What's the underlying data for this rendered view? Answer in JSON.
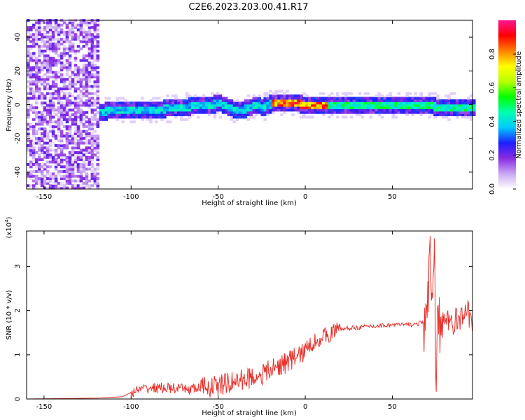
{
  "title": "C2E6.2023.203.00.41.R17",
  "chart_data": [
    {
      "type": "heatmap",
      "xlabel": "Height of straight line (km)",
      "ylabel": "Frequency (Hz)",
      "xlim": [
        -160,
        96
      ],
      "ylim": [
        -50,
        50
      ],
      "xticks": [
        -150,
        -100,
        -50,
        0,
        50
      ],
      "yticks": [
        40,
        20,
        0,
        -20,
        -40
      ],
      "colorbar": {
        "label": "Normalized spectral amplitude",
        "ticks": [
          0.0,
          0.2,
          0.4,
          0.6,
          0.8
        ],
        "colormap": [
          "#ffffff",
          "#c9a8f2",
          "#8a2be2",
          "#1e1eff",
          "#00c8ff",
          "#00ffb0",
          "#00ff00",
          "#b8ff00",
          "#ffff00",
          "#ff8000",
          "#ff0000",
          "#ff1493"
        ]
      },
      "ridge": {
        "x": [
          -135,
          -120,
          -110,
          -100,
          -90,
          -80,
          -70,
          -60,
          -50,
          -40,
          -35,
          -30,
          -25,
          -20,
          -15,
          -10,
          -5,
          0,
          10,
          20,
          30,
          40,
          50,
          60,
          70,
          75,
          80,
          90,
          96
        ],
        "frequency": [
          -5,
          -5,
          -4,
          -4,
          -4,
          -3,
          -2,
          -1,
          0,
          -4,
          -3,
          -1,
          -2,
          0,
          0,
          0,
          0,
          -1,
          -1,
          -1,
          -1,
          -1,
          -1,
          -1,
          -1,
          -2,
          -2,
          -2,
          -2
        ]
      }
    },
    {
      "type": "line",
      "xlabel": "Height of straight line (km)",
      "ylabel": "SNR (10 * v/v)",
      "exponent_label": "(x10",
      "exponent_power": "4",
      "exponent_close": ")",
      "xlim": [
        -160,
        96
      ],
      "ylim": [
        0,
        3.8
      ],
      "xticks": [
        -150,
        -100,
        -50,
        0,
        50
      ],
      "yticks": [
        0,
        1,
        2,
        3
      ],
      "series": [
        {
          "color": "#e8302a",
          "x": [
            -160,
            -140,
            -120,
            -105,
            -100,
            -95,
            -90,
            -80,
            -70,
            -60,
            -50,
            -40,
            -30,
            -25,
            -20,
            -15,
            -10,
            -5,
            0,
            5,
            10,
            15,
            20,
            30,
            40,
            50,
            60,
            65,
            68,
            70,
            72,
            73,
            74,
            75,
            76,
            78,
            80,
            85,
            90,
            92,
            96
          ],
          "y": [
            0.0,
            0.01,
            0.02,
            0.05,
            0.15,
            0.2,
            0.25,
            0.25,
            0.22,
            0.25,
            0.3,
            0.4,
            0.5,
            0.55,
            0.65,
            0.75,
            0.85,
            0.95,
            1.1,
            1.3,
            1.4,
            1.5,
            1.58,
            1.62,
            1.65,
            1.68,
            1.68,
            1.7,
            1.75,
            1.8,
            3.0,
            2.2,
            3.7,
            0.5,
            2.6,
            1.4,
            1.7,
            1.75,
            1.8,
            2.1,
            1.7
          ]
        }
      ]
    }
  ]
}
